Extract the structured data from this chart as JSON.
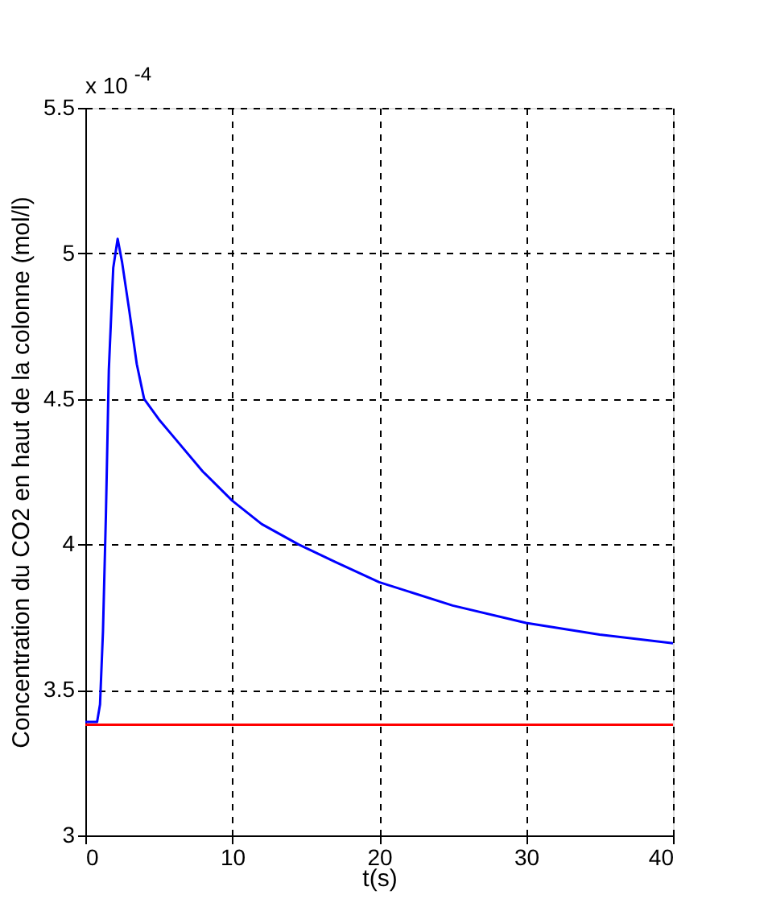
{
  "chart_data": {
    "type": "line",
    "xlabel": "t(s)",
    "ylabel": "Concentration du CO2 en haut de la colonne (mol/l)",
    "annotations": [
      "x 10$^{-4}$"
    ],
    "xlim": [
      0,
      40
    ],
    "xticks": [
      0,
      10,
      20,
      30,
      40
    ],
    "ylim": [
      3,
      5.5
    ],
    "yticks": [
      3,
      3.5,
      4,
      4.5,
      5,
      5.5
    ],
    "grid": true,
    "line_style": "solid",
    "marker": "none",
    "series": [
      {
        "color": "#0000ff",
        "x": [
          0,
          0.8,
          1.0,
          1.2,
          1.4,
          1.6,
          1.9,
          2.2,
          2.5,
          3,
          3.5,
          4,
          5,
          6,
          8,
          10,
          12,
          14.5,
          17,
          20,
          25,
          30,
          35,
          40
        ],
        "values": [
          3.39,
          3.39,
          3.45,
          3.7,
          4.1,
          4.6,
          4.95,
          5.05,
          4.97,
          4.8,
          4.62,
          4.5,
          4.43,
          4.37,
          4.25,
          4.15,
          4.07,
          4.0,
          3.94,
          3.87,
          3.79,
          3.73,
          3.69,
          3.66
        ]
      },
      {
        "color": "#ff0000",
        "x": [
          0,
          40
        ],
        "values": [
          3.38,
          3.38
        ]
      }
    ]
  }
}
